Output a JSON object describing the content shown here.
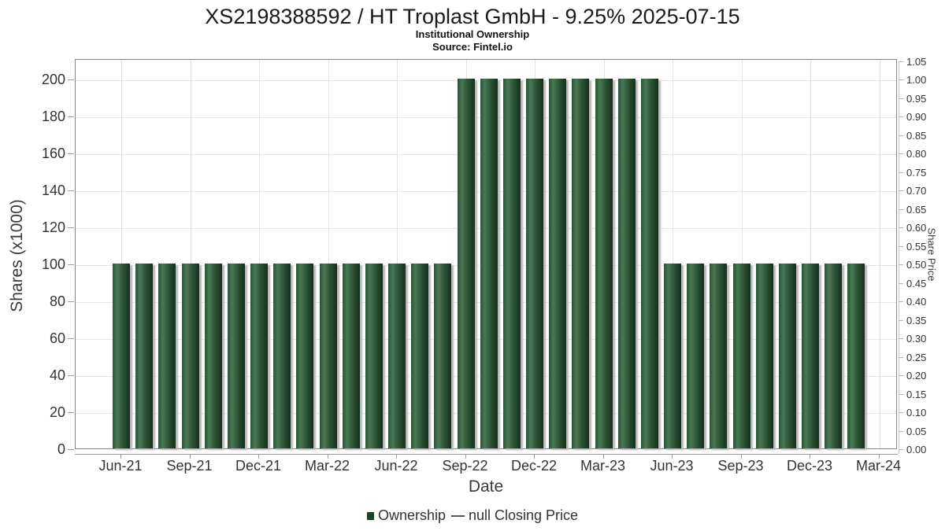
{
  "header": {
    "title": "XS2198388592 / HT Troplast GmbH - 9.25% 2025-07-15",
    "subtitle": "Institutional Ownership",
    "source": "Source: Fintel.io"
  },
  "chart_data": {
    "type": "bar",
    "title": "XS2198388592 / HT Troplast GmbH - 9.25% 2025-07-15",
    "subtitle": "Institutional Ownership",
    "source": "Source: Fintel.io",
    "xlabel": "Date",
    "ylabel_left": "Shares (x1000)",
    "ylabel_right": "Share Price",
    "categories": [
      "Jun-21",
      "Jul-21",
      "Aug-21",
      "Sep-21",
      "Oct-21",
      "Nov-21",
      "Dec-21",
      "Jan-22",
      "Feb-22",
      "Mar-22",
      "Apr-22",
      "May-22",
      "Jun-22",
      "Jul-22",
      "Aug-22",
      "Sep-22",
      "Oct-22",
      "Nov-22",
      "Dec-22",
      "Jan-23",
      "Feb-23",
      "Mar-23",
      "Apr-23",
      "May-23",
      "Jun-23",
      "Jul-23",
      "Aug-23",
      "Sep-23",
      "Oct-23",
      "Nov-23",
      "Dec-23",
      "Jan-24",
      "Feb-24"
    ],
    "series": [
      {
        "name": "Ownership",
        "type": "bar",
        "color": "#1d4226",
        "values": [
          100,
          100,
          100,
          100,
          100,
          100,
          100,
          100,
          100,
          100,
          100,
          100,
          100,
          100,
          100,
          200,
          200,
          200,
          200,
          200,
          200,
          200,
          200,
          200,
          100,
          100,
          100,
          100,
          100,
          100,
          100,
          100,
          100
        ]
      },
      {
        "name": "null Closing Price",
        "type": "line",
        "color": "#555555",
        "values": []
      }
    ],
    "x_tick_labels": [
      "Jun-21",
      "Sep-21",
      "Dec-21",
      "Mar-22",
      "Jun-22",
      "Sep-22",
      "Dec-22",
      "Mar-23",
      "Jun-23",
      "Sep-23",
      "Dec-23",
      "Mar-24"
    ],
    "y_ticks_left": [
      0,
      20,
      40,
      60,
      80,
      100,
      120,
      140,
      160,
      180,
      200
    ],
    "y_ticks_right": [
      "0.00",
      "0.05",
      "0.10",
      "0.15",
      "0.20",
      "0.25",
      "0.30",
      "0.35",
      "0.40",
      "0.45",
      "0.50",
      "0.55",
      "0.60",
      "0.65",
      "0.70",
      "0.75",
      "0.80",
      "0.85",
      "0.90",
      "0.95",
      "1.00",
      "1.05"
    ],
    "ylim_left": [
      0,
      211
    ],
    "ylim_right": [
      0,
      1.055
    ],
    "grid": true,
    "legend_position": "bottom"
  },
  "legend": {
    "ownership_label": "Ownership",
    "price_label": "null Closing Price"
  }
}
